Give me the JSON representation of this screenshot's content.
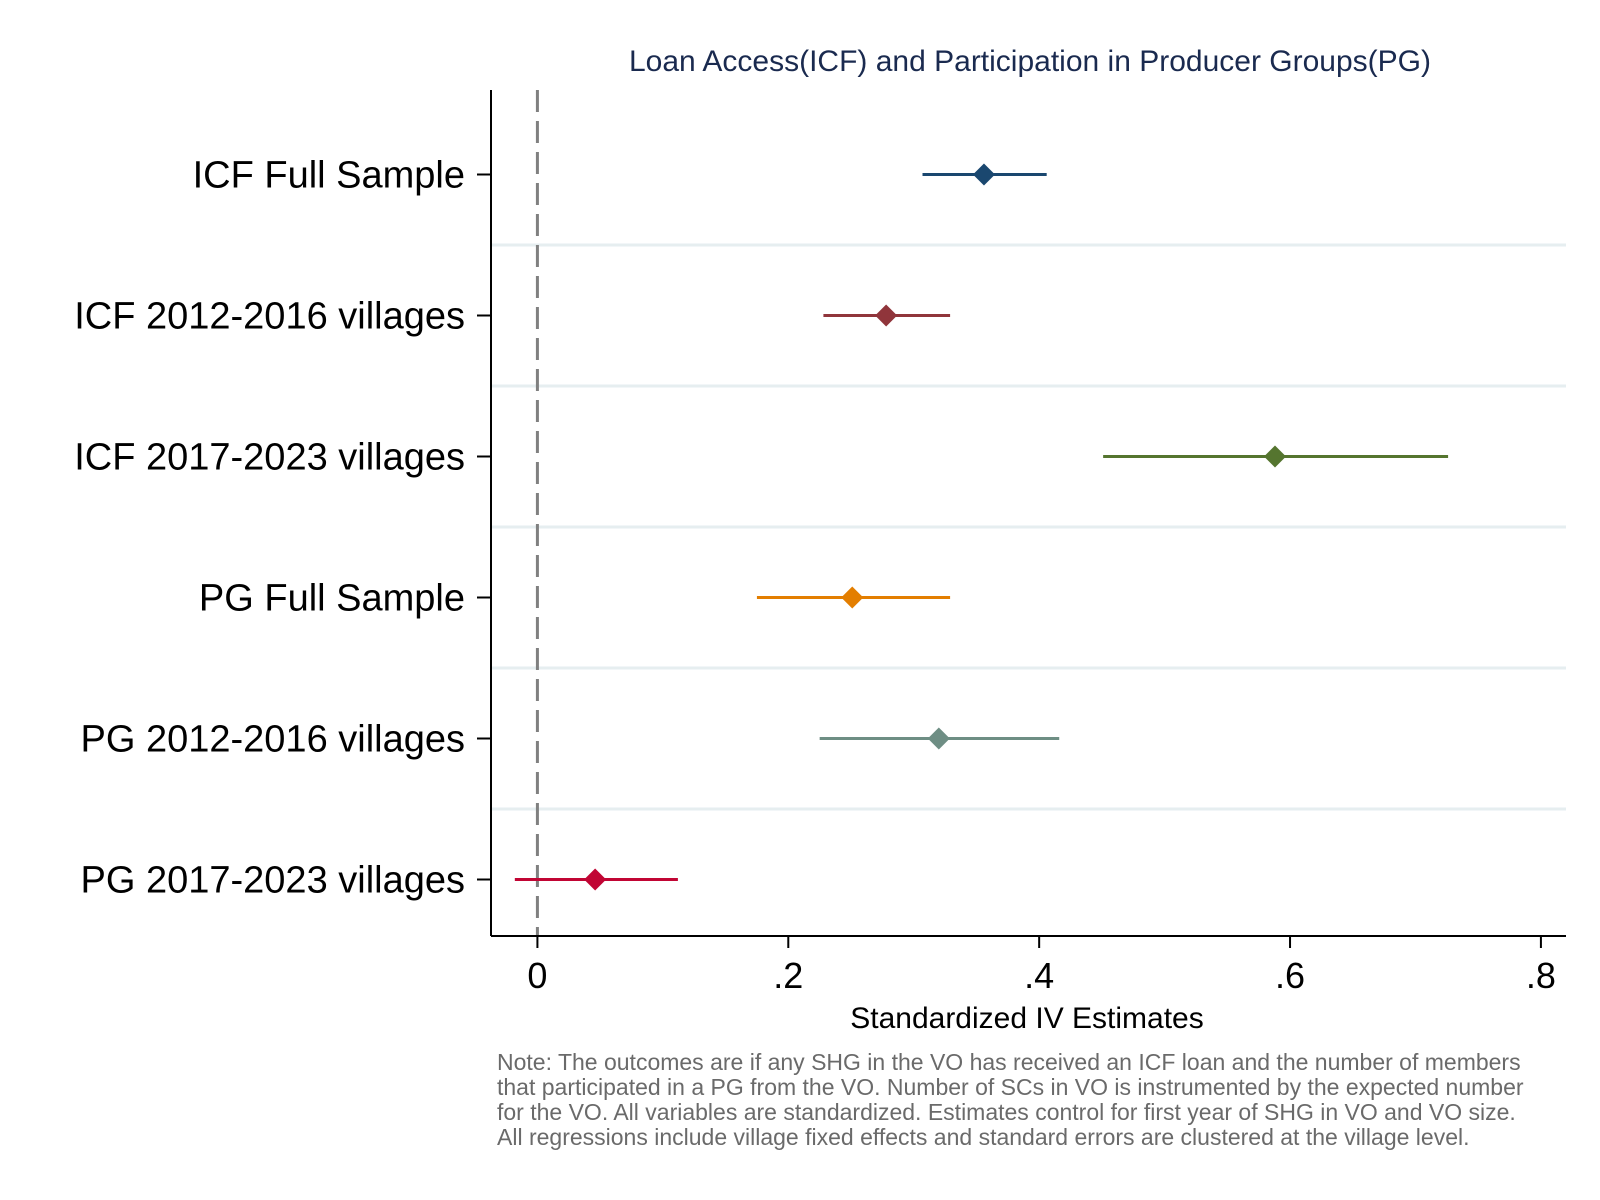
{
  "chart_data": {
    "type": "coefficient-plot",
    "title": "Loan Access(ICF) and Participation in Producer Groups(PG)",
    "xlabel": "Standardized IV Estimates",
    "ylabel": "",
    "xlim": [
      -0.037,
      0.82
    ],
    "xticks": [
      0,
      0.2,
      0.4,
      0.6,
      0.8
    ],
    "xtick_labels": [
      "0",
      ".2",
      ".4",
      ".6",
      ".8"
    ],
    "reference_line": 0,
    "series": [
      {
        "name": "ICF Full Sample",
        "estimate": 0.356,
        "ci_low": 0.307,
        "ci_high": 0.406,
        "color": "#1a476f"
      },
      {
        "name": "ICF 2012-2016 villages",
        "estimate": 0.278,
        "ci_low": 0.228,
        "ci_high": 0.329,
        "color": "#90353b"
      },
      {
        "name": "ICF 2017-2023 villages",
        "estimate": 0.588,
        "ci_low": 0.451,
        "ci_high": 0.726,
        "color": "#55752f"
      },
      {
        "name": "PG Full Sample",
        "estimate": 0.251,
        "ci_low": 0.175,
        "ci_high": 0.329,
        "color": "#e37e00"
      },
      {
        "name": "PG 2012-2016 villages",
        "estimate": 0.32,
        "ci_low": 0.225,
        "ci_high": 0.416,
        "color": "#6e8e84"
      },
      {
        "name": "PG 2017-2023 villages",
        "estimate": 0.046,
        "ci_low": -0.018,
        "ci_high": 0.112,
        "color": "#c10534"
      }
    ],
    "title_color": "#1a2a4f",
    "note_lines": [
      "Note: The outcomes are if any SHG in the VO has received an ICF loan and the number of members",
      "that participated in a PG from the VO. Number of SCs in VO is instrumented by the  expected number",
      "for the VO. All variables are standardized. Estimates control for first year of SHG in VO and VO size.",
      "All regressions include village fixed effects and standard errors are clustered at the village level."
    ]
  }
}
